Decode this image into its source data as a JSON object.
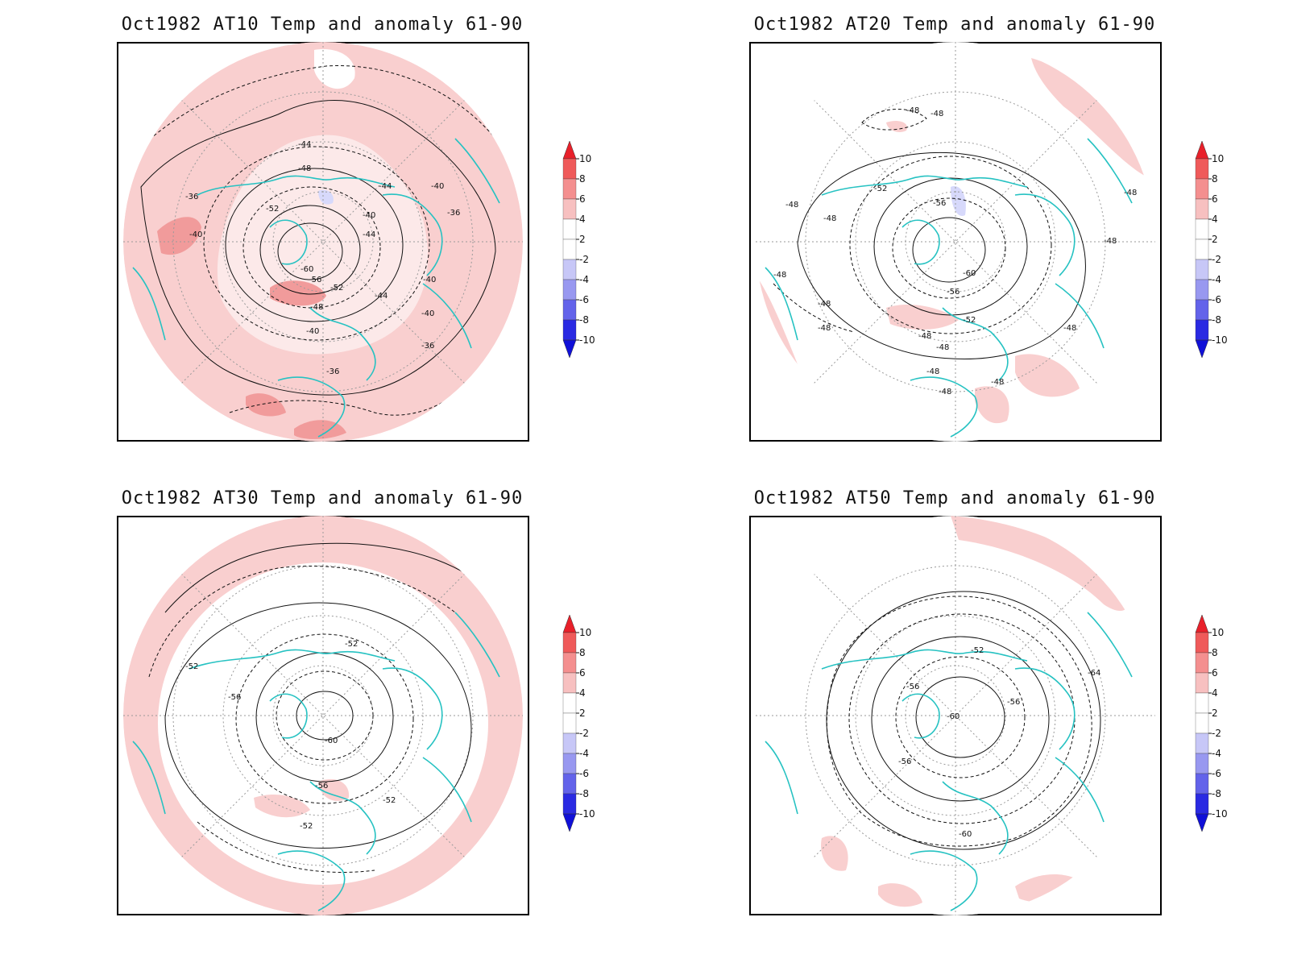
{
  "colors": {
    "warm_light": "#f9cfcf",
    "warm_mid": "#f19b9b",
    "cool_light": "#d7d9fb",
    "coast": "#26c2c2",
    "contour": "#111111",
    "grid": "#9a9a9a"
  },
  "colorbar": {
    "labels": [
      "10",
      "8",
      "6",
      "4",
      "2",
      "-2",
      "-4",
      "-6",
      "-8",
      "-10"
    ],
    "fills": [
      "#e8202a",
      "#ef5a5a",
      "#f48f8f",
      "#f7c0c0",
      "#ffffff",
      "#ffffff",
      "#c7c7f7",
      "#9898f0",
      "#6363ea",
      "#2a2ae2",
      "#1010d8"
    ]
  },
  "panels": [
    {
      "title": "Oct1982 AT10 Temp and anomaly 61-90",
      "contour_labels": [
        "-36",
        "-40",
        "-44",
        "-48",
        "-52",
        "-60",
        "-56",
        "-52",
        "-48",
        "-44",
        "-40",
        "-44",
        "-40",
        "-36",
        "-40",
        "-40",
        "-36",
        "-36",
        "-40",
        "-44"
      ]
    },
    {
      "title": "Oct1982 AT20 Temp and anomaly 61-90",
      "contour_labels": [
        "-48",
        "-48",
        "-52",
        "-56",
        "-48",
        "-48",
        "-48",
        "-60",
        "-56",
        "-52",
        "-48",
        "-48",
        "-48",
        "-48",
        "-48",
        "-48",
        "-48",
        "-48",
        "-48",
        "-48"
      ]
    },
    {
      "title": "Oct1982 AT30 Temp and anomaly 61-90",
      "contour_labels": [
        "-52",
        "-52",
        "-56",
        "-60",
        "-56",
        "-52",
        "-52"
      ]
    },
    {
      "title": "Oct1982 AT50 Temp and anomaly 61-90",
      "contour_labels": [
        "-52",
        "-56",
        "-60",
        "-56",
        "-56",
        "-64",
        "-60"
      ]
    }
  ]
}
